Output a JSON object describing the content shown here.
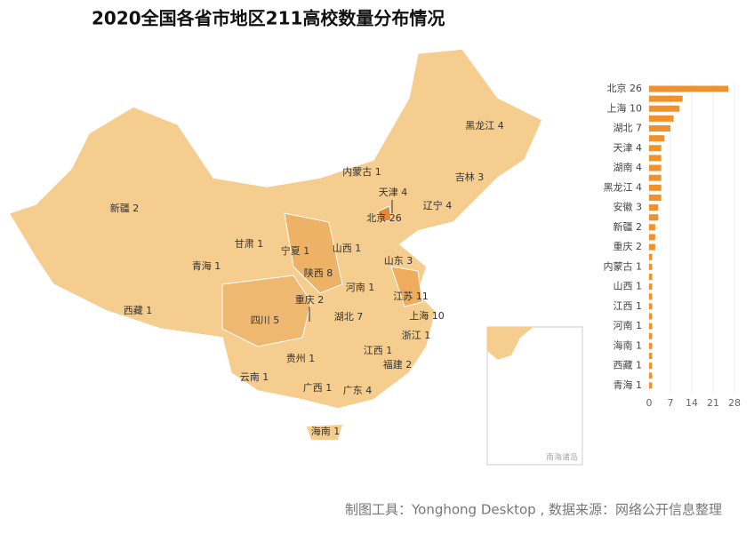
{
  "title": "2020全国各省市地区211高校数量分布情况",
  "map": {
    "labels": [
      "新疆 2",
      "西藏 1",
      "青海 1",
      "甘肃 1",
      "宁夏 1",
      "内蒙古 1",
      "黑龙江 4",
      "吉林 3",
      "辽宁 4",
      "天津 4",
      "北京 26",
      "山西 1",
      "山东 3",
      "陕西 8",
      "河南 1",
      "江苏 11",
      "上海 10",
      "重庆 2",
      "四川 5",
      "湖北 7",
      "浙江 1",
      "江西 1",
      "福建 2",
      "贵州 1",
      "云南 1",
      "广西 1",
      "广东 4",
      "海南 1"
    ],
    "inset_label": "南海诸岛"
  },
  "chart_data": {
    "type": "bar",
    "orientation": "horizontal",
    "color": "#f0922b",
    "categories": [
      "北京 26",
      null,
      "上海 10",
      null,
      "湖北 7",
      null,
      "天津 4",
      null,
      "湖南 4",
      null,
      "黑龙江 4",
      null,
      "安徽 3",
      null,
      "新疆 2",
      null,
      "重庆 2",
      null,
      "内蒙古 1",
      null,
      "山西 1",
      null,
      "江西 1",
      null,
      "河南 1",
      null,
      "海南 1",
      null,
      "西藏 1",
      null,
      "青海 1"
    ],
    "values": [
      26,
      11,
      10,
      8,
      7,
      5,
      4,
      4,
      4,
      4,
      4,
      4,
      3,
      3,
      2,
      2,
      2,
      1,
      1,
      1,
      1,
      1,
      1,
      1,
      1,
      1,
      1,
      1,
      1,
      1,
      1
    ],
    "xlim": [
      0,
      28
    ],
    "xticks": [
      0,
      7,
      14,
      21,
      28
    ],
    "grid": true
  },
  "footer": "制图工具：Yonghong Desktop , 数据来源：网络公开信息整理"
}
